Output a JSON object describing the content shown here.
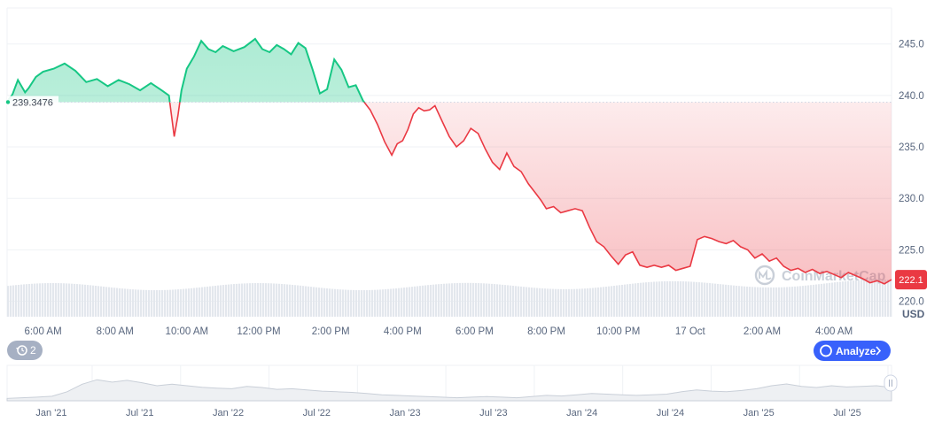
{
  "chart_data": {
    "type": "area",
    "unit": "USD",
    "reference_value_label": "239.3476",
    "reference_value": 239.3476,
    "current_value_label": "222.1",
    "current_value": 222.1,
    "ylim": [
      218.5,
      248.5
    ],
    "yticks": [
      "245.0",
      "240.0",
      "235.0",
      "230.0",
      "225.0",
      "220.0"
    ],
    "ytick_values": [
      245,
      240,
      235,
      230,
      225,
      220
    ],
    "xticks": [
      "6:00 AM",
      "8:00 AM",
      "10:00 AM",
      "12:00 PM",
      "2:00 PM",
      "4:00 PM",
      "6:00 PM",
      "8:00 PM",
      "10:00 PM",
      "17 Oct",
      "2:00 AM",
      "4:00 AM"
    ],
    "xtick_positions": [
      1,
      3,
      5,
      7,
      9,
      11,
      13,
      15,
      17,
      19,
      21,
      23
    ],
    "xlim": [
      0,
      24.6
    ],
    "x": [
      0,
      0.15,
      0.3,
      0.5,
      0.6,
      0.8,
      1.0,
      1.3,
      1.6,
      1.9,
      2.2,
      2.5,
      2.8,
      3.1,
      3.4,
      3.7,
      4.0,
      4.3,
      4.5,
      4.65,
      4.75,
      4.85,
      5.0,
      5.2,
      5.4,
      5.6,
      5.8,
      6.0,
      6.3,
      6.6,
      6.9,
      7.1,
      7.3,
      7.5,
      7.7,
      7.9,
      8.1,
      8.3,
      8.5,
      8.7,
      8.9,
      9.1,
      9.3,
      9.5,
      9.7,
      9.9,
      10.1,
      10.3,
      10.5,
      10.7,
      10.85,
      11.0,
      11.15,
      11.3,
      11.45,
      11.6,
      11.75,
      11.9,
      12.1,
      12.3,
      12.5,
      12.7,
      12.9,
      13.1,
      13.3,
      13.5,
      13.7,
      13.9,
      14.1,
      14.3,
      14.5,
      14.7,
      14.85,
      15.0,
      15.2,
      15.4,
      15.6,
      15.8,
      16.0,
      16.2,
      16.4,
      16.6,
      16.8,
      17.0,
      17.2,
      17.4,
      17.6,
      17.8,
      18.0,
      18.2,
      18.4,
      18.6,
      18.8,
      19.0,
      19.2,
      19.4,
      19.6,
      19.8,
      20.0,
      20.2,
      20.4,
      20.6,
      20.8,
      21.0,
      21.2,
      21.4,
      21.6,
      21.8,
      22.0,
      22.2,
      22.4,
      22.6,
      22.8,
      23.0,
      23.2,
      23.4,
      23.6,
      23.8,
      24.0,
      24.2,
      24.4,
      24.6
    ],
    "y": [
      239.4,
      240.1,
      241.5,
      240.3,
      240.7,
      241.8,
      242.3,
      242.6,
      243.1,
      242.4,
      241.3,
      241.6,
      240.9,
      241.5,
      241.1,
      240.5,
      241.2,
      240.5,
      240.0,
      236.0,
      238.0,
      240.5,
      242.6,
      243.8,
      245.3,
      244.5,
      244.2,
      244.8,
      244.3,
      244.7,
      245.5,
      244.5,
      244.2,
      244.9,
      244.5,
      244.0,
      245.1,
      244.6,
      242.5,
      240.2,
      240.6,
      243.5,
      242.5,
      240.8,
      241.0,
      239.5,
      238.6,
      237.2,
      235.5,
      234.2,
      235.3,
      235.6,
      236.7,
      238.2,
      238.8,
      238.5,
      238.6,
      239.0,
      237.5,
      236.0,
      235.0,
      235.6,
      236.8,
      236.3,
      234.8,
      233.5,
      232.8,
      234.4,
      233.1,
      232.6,
      231.4,
      230.5,
      229.8,
      229.0,
      229.2,
      228.6,
      228.8,
      229.0,
      228.8,
      227.2,
      225.8,
      225.3,
      224.4,
      223.6,
      224.5,
      224.8,
      223.5,
      223.3,
      223.5,
      223.3,
      223.5,
      223.0,
      223.2,
      223.4,
      226.0,
      226.3,
      226.1,
      225.8,
      225.6,
      225.9,
      225.3,
      225.0,
      224.2,
      224.6,
      223.9,
      224.2,
      223.4,
      223.0,
      223.2,
      222.8,
      223.1,
      222.7,
      222.9,
      222.6,
      222.3,
      222.8,
      222.5,
      222.2,
      221.8,
      222.0,
      221.7,
      222.1
    ],
    "volume_label": "",
    "navigator": {
      "xticks": [
        "Jan '21",
        "Jul '21",
        "Jan '22",
        "Jul '22",
        "Jan '23",
        "Jul '23",
        "Jan '24",
        "Jul '24",
        "Jan '25",
        "Jul '25"
      ],
      "values": [
        0.08,
        0.1,
        0.12,
        0.15,
        0.3,
        0.55,
        0.7,
        0.62,
        0.68,
        0.6,
        0.5,
        0.55,
        0.5,
        0.45,
        0.42,
        0.4,
        0.48,
        0.44,
        0.38,
        0.4,
        0.36,
        0.32,
        0.3,
        0.28,
        0.24,
        0.2,
        0.18,
        0.16,
        0.14,
        0.12,
        0.1,
        0.12,
        0.14,
        0.12,
        0.1,
        0.14,
        0.18,
        0.16,
        0.2,
        0.24,
        0.22,
        0.2,
        0.18,
        0.2,
        0.22,
        0.3,
        0.36,
        0.32,
        0.3,
        0.34,
        0.4,
        0.5,
        0.56,
        0.48,
        0.44,
        0.5,
        0.46,
        0.48,
        0.5,
        0.44
      ],
      "colors": {
        "line": "#c9cfd8",
        "fill": "#eef0f3"
      }
    }
  },
  "colors": {
    "up_line": "#16c784",
    "up_fill": "#16c784",
    "down_line": "#ea3943",
    "down_fill": "#ea3943",
    "grid": "#eff2f5",
    "ref_line": "#cfd6e4",
    "current_badge": "#ea3943",
    "analyze_button": "#3861fb",
    "history_chip": "#a6b0c3",
    "volume_bar": "#e3e7ed"
  },
  "labels": {
    "watermark": "CoinMarketCap",
    "analyze_button": "Analyze",
    "history_count": "2"
  }
}
